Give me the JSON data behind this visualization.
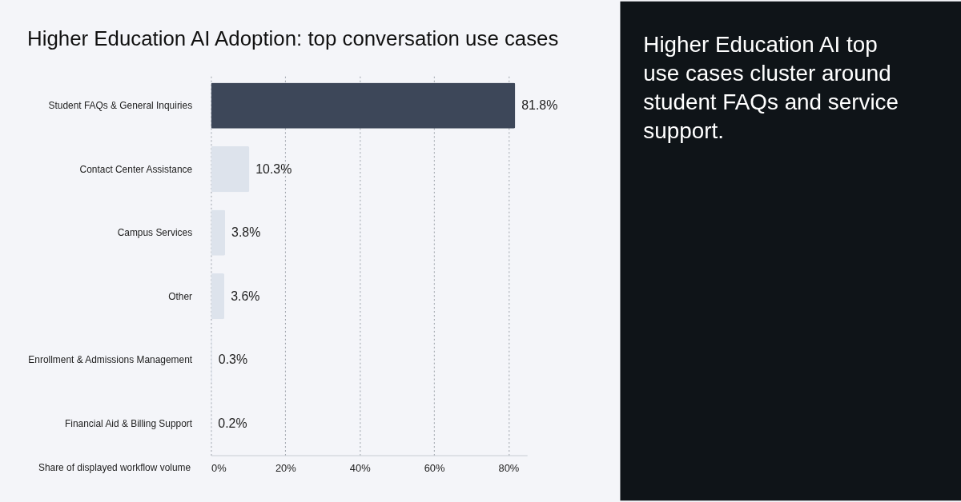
{
  "chart_data": {
    "type": "bar",
    "orientation": "horizontal",
    "title": "Higher Education AI Adoption: top conversation use cases",
    "categories": [
      "Student FAQs & General Inquiries",
      "Contact Center Assistance",
      "Campus Services",
      "Other",
      "Enrollment & Admissions Management",
      "Financial Aid & Billing Support"
    ],
    "values": [
      81.8,
      10.3,
      3.8,
      3.6,
      0.3,
      0.2
    ],
    "colors": [
      "#3d4759",
      "#dde3ec",
      "#dde3ec",
      "#dde3ec",
      "#dde3ec",
      "#dde3ec"
    ],
    "value_labels": [
      "81.8%",
      "10.3%",
      "3.8%",
      "3.6%",
      "0.3%",
      "0.2%"
    ],
    "xlabel": "Share of displayed workflow volume",
    "xlim": [
      0,
      85
    ],
    "xticks": [
      {
        "value": 0,
        "label": "0%"
      },
      {
        "value": 20,
        "label": "20%"
      },
      {
        "value": 40,
        "label": "40%"
      },
      {
        "value": 60,
        "label": "60%"
      },
      {
        "value": 80,
        "label": "80%"
      }
    ],
    "grid": "x",
    "annotations": [
      "Higher Education AI top use cases cluster around student FAQs and service support."
    ]
  }
}
